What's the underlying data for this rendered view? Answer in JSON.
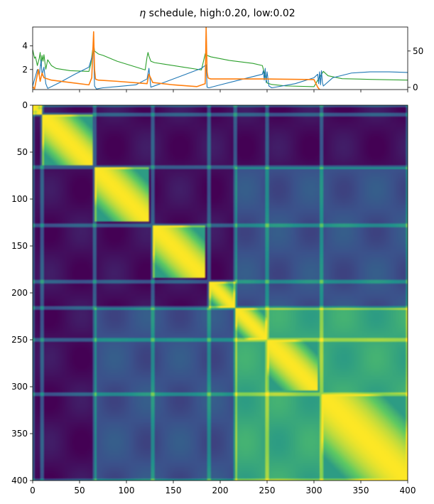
{
  "chart_data": [
    {
      "type": "line",
      "title": "η schedule, high:0.20, low:0.02",
      "title_symbol": "η",
      "title_rest": " schedule, high:0.20, low:0.02",
      "xlim": [
        0,
        400
      ],
      "ylim_left": [
        0.3,
        5.6
      ],
      "ylim_right": [
        -3,
        83
      ],
      "left_ticks": [
        "2",
        "4"
      ],
      "right_ticks": [
        "0",
        "50"
      ],
      "xticks_shown": false,
      "colors": {
        "blue": "#1f77b4",
        "orange": "#ff7f0e",
        "green": "#2ca02c"
      },
      "series": [
        {
          "color": "#1f77b4",
          "axis": "left",
          "x": [
            0,
            5,
            7,
            9,
            10,
            12,
            14,
            16,
            20,
            30,
            45,
            60,
            63,
            65,
            66,
            68,
            75,
            90,
            110,
            122,
            124,
            126,
            140,
            160,
            180,
            185,
            186,
            188,
            200,
            220,
            240,
            245,
            246,
            247,
            248,
            249,
            250,
            252,
            255,
            280,
            300,
            304,
            305,
            306,
            307,
            308,
            309,
            310,
            320,
            340,
            360,
            380,
            400
          ],
          "y": [
            0.6,
            2.0,
            1.5,
            2.8,
            1.5,
            2.2,
            0.8,
            0.4,
            0.55,
            0.95,
            1.6,
            2.2,
            3.0,
            3.6,
            0.6,
            0.35,
            0.45,
            0.55,
            0.7,
            1.2,
            2.1,
            0.5,
            0.9,
            1.5,
            2.1,
            2.4,
            0.5,
            0.45,
            0.7,
            1.1,
            1.5,
            1.6,
            1.9,
            1.1,
            2.1,
            0.9,
            1.8,
            0.6,
            0.45,
            0.8,
            1.3,
            1.6,
            0.8,
            1.8,
            0.7,
            1.9,
            0.9,
            0.6,
            1.3,
            1.7,
            1.8,
            1.8,
            1.75
          ]
        },
        {
          "color": "#ff7f0e",
          "axis": "left",
          "x": [
            0,
            2,
            6,
            8,
            10,
            12,
            20,
            40,
            60,
            63,
            65,
            66,
            67,
            68,
            70,
            90,
            122,
            124,
            126,
            128,
            150,
            175,
            184,
            185,
            186,
            187,
            188,
            190,
            220,
            245,
            300,
            304,
            306,
            310,
            350,
            400
          ],
          "y": [
            0.55,
            0.35,
            2.0,
            1.0,
            1.7,
            1.3,
            1.1,
            0.9,
            0.7,
            1.3,
            5.2,
            2.0,
            1.2,
            1.15,
            1.1,
            1.0,
            0.8,
            1.6,
            1.25,
            0.9,
            0.7,
            0.55,
            0.8,
            5.6,
            1.8,
            1.3,
            1.25,
            1.2,
            1.2,
            1.2,
            1.15,
            0.5,
            0.3,
            0.22,
            0.22,
            0.22
          ]
        },
        {
          "color": "#2ca02c",
          "axis": "right",
          "x": [
            0,
            2,
            3,
            5,
            7,
            8,
            9,
            10,
            11,
            12,
            14,
            16,
            18,
            20,
            25,
            40,
            60,
            62,
            64,
            65,
            66,
            67,
            70,
            75,
            90,
            110,
            120,
            122,
            123,
            124,
            126,
            130,
            140,
            160,
            180,
            184,
            185,
            186,
            188,
            190,
            210,
            235,
            245,
            247,
            250,
            255,
            270,
            300,
            305,
            310,
            315,
            330,
            360,
            380,
            400
          ],
          "y": [
            52,
            40,
            42,
            30,
            40,
            48,
            30,
            44,
            36,
            45,
            25,
            38,
            34,
            30,
            26,
            23,
            22,
            32,
            52,
            60,
            50,
            49,
            46,
            44,
            36,
            28,
            24,
            42,
            48,
            43,
            36,
            34,
            32,
            28,
            24,
            46,
            48,
            44,
            43,
            42,
            37,
            33,
            30,
            20,
            6,
            4,
            2,
            1,
            12,
            22,
            16,
            12,
            11,
            10.5,
            10
          ]
        }
      ]
    },
    {
      "type": "heatmap",
      "title": "",
      "xlim": [
        0,
        400
      ],
      "ylim": [
        400,
        0
      ],
      "xticks": [
        "0",
        "50",
        "100",
        "150",
        "200",
        "250",
        "300",
        "350",
        "400"
      ],
      "yticks": [
        "0",
        "50",
        "100",
        "150",
        "200",
        "250",
        "300",
        "350",
        "400"
      ],
      "colormap": "viridis",
      "colormap_stops": [
        "#440154",
        "#3b528b",
        "#21918c",
        "#5ec962",
        "#fde725"
      ],
      "diagonal_blocks": [
        [
          0,
          10
        ],
        [
          10,
          65
        ],
        [
          66,
          124
        ],
        [
          128,
          185
        ],
        [
          188,
          216
        ],
        [
          216,
          250
        ],
        [
          250,
          304
        ],
        [
          308,
          400
        ]
      ],
      "off_diagonal_clusters": [
        {
          "rows": [
            216,
            400
          ],
          "cols": [
            216,
            400
          ],
          "level": 0.6
        },
        {
          "rows": [
            216,
            400
          ],
          "cols": [
            66,
            216
          ],
          "level": 0.25
        }
      ]
    }
  ]
}
